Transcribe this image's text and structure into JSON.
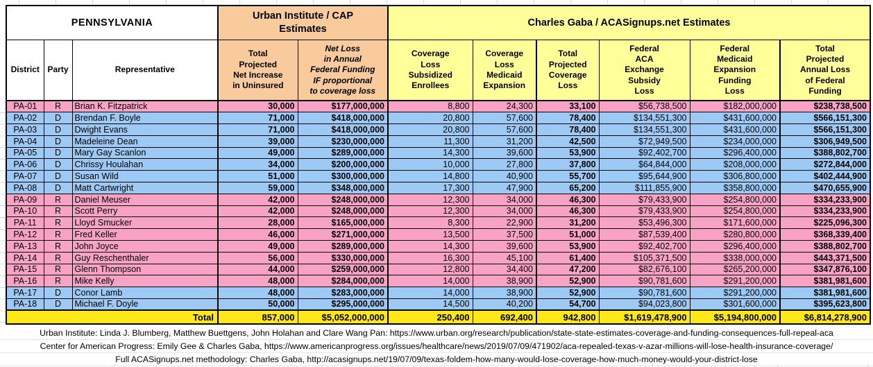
{
  "title": "PENNSYLVANIA",
  "groups": {
    "urban": "Urban Institute / CAP\nEstimates",
    "gaba": "Charles Gaba / ACASignups.net Estimates"
  },
  "columns": [
    {
      "key": "district",
      "label": "District"
    },
    {
      "key": "party",
      "label": "Party"
    },
    {
      "key": "representative",
      "label": "Representative"
    },
    {
      "key": "net-increase-uninsured",
      "label": "Total\nProjected\nNet Increase\nin Uninsured"
    },
    {
      "key": "net-loss-federal-funding",
      "label": "Net Loss\nin Annual\nFederal Funding\nIF proportional\nto coverage loss",
      "italic": true
    },
    {
      "key": "coverage-loss-subsidized",
      "label": "Coverage\nLoss\nSubsidized\nEnrollees"
    },
    {
      "key": "coverage-loss-medicaid",
      "label": "Coverage\nLoss\nMedicaid\nExpansion"
    },
    {
      "key": "total-coverage-loss",
      "label": "Total\nProjected\nCoverage\nLoss"
    },
    {
      "key": "aca-exchange-subsidy-loss",
      "label": "Federal\nACA\nExchange\nSubsidy\nLoss"
    },
    {
      "key": "medicaid-expansion-funding-loss",
      "label": "Federal\nMedicaid\nExpansion\nFunding\nLoss"
    },
    {
      "key": "total-annual-federal-loss",
      "label": "Total\nProjected\nAnnual Loss\nof Federal\nFunding"
    }
  ],
  "rows": [
    {
      "district": "PA-01",
      "party": "R",
      "rep": "Brian K. Fitzpatrick",
      "values": [
        "30,000",
        "$177,000,000",
        "8,800",
        "24,300",
        "33,100",
        "$56,738,500",
        "$182,000,000",
        "$238,738,500"
      ]
    },
    {
      "district": "PA-02",
      "party": "D",
      "rep": "Brendan F. Boyle",
      "values": [
        "71,000",
        "$418,000,000",
        "20,800",
        "57,600",
        "78,400",
        "$134,551,300",
        "$431,600,000",
        "$566,151,300"
      ]
    },
    {
      "district": "PA-03",
      "party": "D",
      "rep": "Dwight Evans",
      "values": [
        "71,000",
        "$418,000,000",
        "20,800",
        "57,600",
        "78,400",
        "$134,551,300",
        "$431,600,000",
        "$566,151,300"
      ]
    },
    {
      "district": "PA-04",
      "party": "D",
      "rep": "Madeleine Dean",
      "values": [
        "39,000",
        "$230,000,000",
        "11,300",
        "31,200",
        "42,500",
        "$72,949,500",
        "$234,000,000",
        "$306,949,500"
      ]
    },
    {
      "district": "PA-05",
      "party": "D",
      "rep": "Mary Gay Scanlon",
      "values": [
        "49,000",
        "$289,000,000",
        "14,300",
        "39,600",
        "53,900",
        "$92,402,700",
        "$296,400,000",
        "$388,802,700"
      ]
    },
    {
      "district": "PA-06",
      "party": "D",
      "rep": "Chrissy Houlahan",
      "values": [
        "34,000",
        "$200,000,000",
        "10,000",
        "27,800",
        "37,800",
        "$64,844,000",
        "$208,000,000",
        "$272,844,000"
      ]
    },
    {
      "district": "PA-07",
      "party": "D",
      "rep": "Susan Wild",
      "values": [
        "51,000",
        "$300,000,000",
        "14,800",
        "40,900",
        "55,700",
        "$95,644,900",
        "$306,800,000",
        "$402,444,900"
      ]
    },
    {
      "district": "PA-08",
      "party": "D",
      "rep": "Matt Cartwright",
      "values": [
        "59,000",
        "$348,000,000",
        "17,300",
        "47,900",
        "65,200",
        "$111,855,900",
        "$358,800,000",
        "$470,655,900"
      ]
    },
    {
      "district": "PA-09",
      "party": "R",
      "rep": "Daniel Meuser",
      "values": [
        "42,000",
        "$248,000,000",
        "12,300",
        "34,000",
        "46,300",
        "$79,433,900",
        "$254,800,000",
        "$334,233,900"
      ]
    },
    {
      "district": "PA-10",
      "party": "R",
      "rep": "Scott Perry",
      "values": [
        "42,000",
        "$248,000,000",
        "12,300",
        "34,000",
        "46,300",
        "$79,433,900",
        "$254,800,000",
        "$334,233,900"
      ]
    },
    {
      "district": "PA-11",
      "party": "R",
      "rep": "Lloyd Smucker",
      "values": [
        "28,000",
        "$165,000,000",
        "8,300",
        "22,900",
        "31,200",
        "$53,496,300",
        "$171,600,000",
        "$225,096,300"
      ]
    },
    {
      "district": "PA-12",
      "party": "R",
      "rep": "Fred Keller",
      "values": [
        "46,000",
        "$271,000,000",
        "13,500",
        "37,500",
        "51,000",
        "$87,539,400",
        "$280,800,000",
        "$368,339,400"
      ]
    },
    {
      "district": "PA-13",
      "party": "R",
      "rep": "John Joyce",
      "values": [
        "49,000",
        "$289,000,000",
        "14,300",
        "39,600",
        "53,900",
        "$92,402,700",
        "$296,400,000",
        "$388,802,700"
      ]
    },
    {
      "district": "PA-14",
      "party": "R",
      "rep": "Guy Reschenthaler",
      "values": [
        "56,000",
        "$330,000,000",
        "16,300",
        "45,100",
        "61,400",
        "$105,371,500",
        "$338,000,000",
        "$443,371,500"
      ]
    },
    {
      "district": "PA-15",
      "party": "R",
      "rep": "Glenn Thompson",
      "values": [
        "44,000",
        "$259,000,000",
        "12,800",
        "34,400",
        "47,200",
        "$82,676,100",
        "$265,200,000",
        "$347,876,100"
      ]
    },
    {
      "district": "PA-16",
      "party": "R",
      "rep": "Mike Kelly",
      "values": [
        "48,000",
        "$284,000,000",
        "14,000",
        "38,900",
        "52,900",
        "$90,781,600",
        "$291,200,000",
        "$381,981,600"
      ]
    },
    {
      "district": "PA-17",
      "party": "D",
      "rep": "Conor Lamb",
      "values": [
        "48,000",
        "$283,000,000",
        "14,000",
        "38,900",
        "52,900",
        "$90,781,600",
        "$291,200,000",
        "$381,981,600"
      ]
    },
    {
      "district": "PA-18",
      "party": "D",
      "rep": "Michael F. Doyle",
      "values": [
        "50,000",
        "$295,000,000",
        "14,500",
        "40,200",
        "54,700",
        "$94,023,800",
        "$301,600,000",
        "$395,623,800"
      ]
    }
  ],
  "total": {
    "label": "Total",
    "values": [
      "857,000",
      "$5,052,000,000",
      "250,400",
      "692,400",
      "942,800",
      "$1,619,478,900",
      "$5,194,800,000",
      "$6,814,278,900"
    ]
  },
  "footnotes": [
    "Urban Institute: Linda J. Blumberg, Matthew Buettgens, John Holahan and Clare Wang Pan: https://www.urban.org/research/publication/state-state-estimates-coverage-and-funding-consequences-full-repeal-aca",
    "Center for American Progress: Emily Gee & Charles Gaba, https://www.americanprogress.org/issues/healthcare/news/2019/07/09/471902/aca-repealed-texas-v-azar-millions-will-lose-health-insurance-coverage/",
    "Full ACASignups.net methodology: Charles Gaba, http://acasignups.net/19/07/09/texas-foldem-how-many-would-lose-coverage-how-much-money-would-your-district-lose"
  ],
  "colors": {
    "republican_row": "#F8A3C6",
    "democrat_row": "#9DC9F5",
    "urban_header": "#F9CB9C",
    "gaba_header": "#FFFF99",
    "total_row": "#FFE81A"
  }
}
